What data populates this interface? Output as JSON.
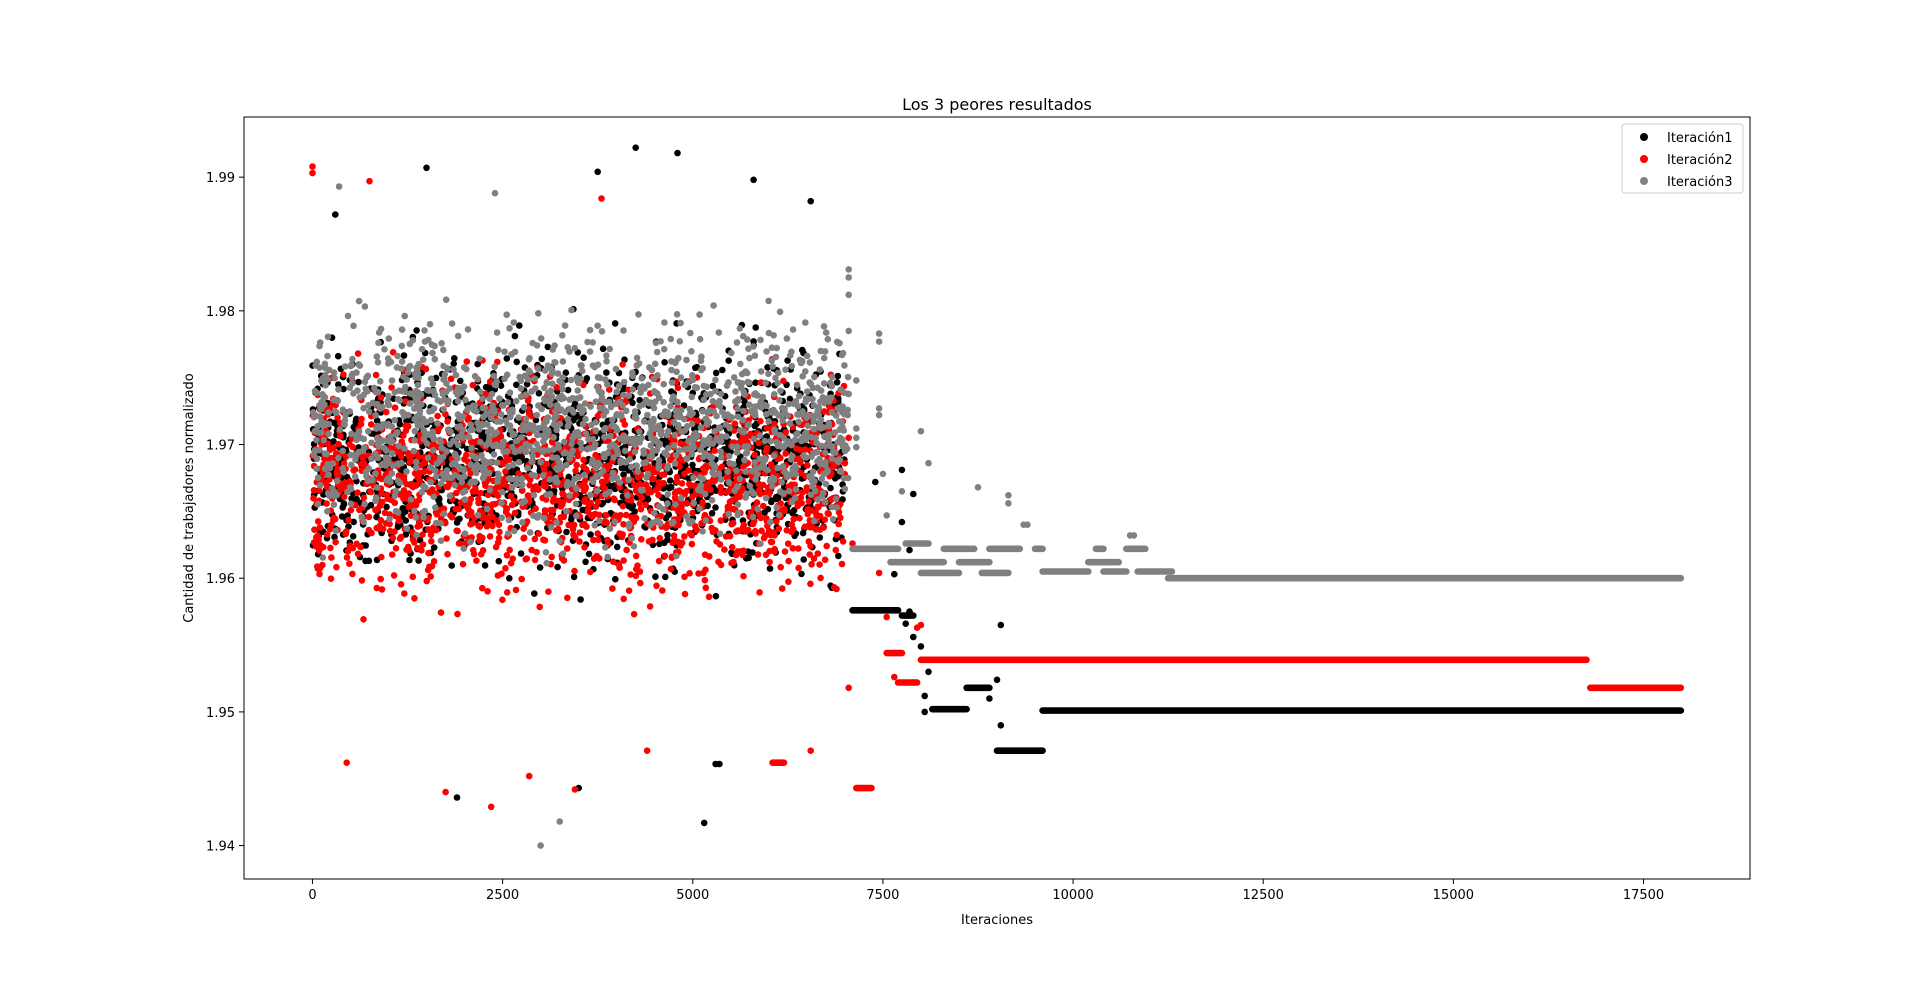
{
  "chart_data": {
    "type": "scatter",
    "title": "Los 3 peores resultados",
    "xlabel": "Iteraciones",
    "ylabel": "Cantidad de trabajadores normalizado",
    "xlim": [
      -900,
      18900
    ],
    "ylim": [
      1.9375,
      1.9945
    ],
    "xticks": [
      0,
      2500,
      5000,
      7500,
      10000,
      12500,
      15000,
      17500
    ],
    "xtick_labels": [
      "0",
      "2500",
      "5000",
      "7500",
      "10000",
      "12500",
      "15000",
      "17500"
    ],
    "yticks": [
      1.94,
      1.95,
      1.96,
      1.97,
      1.98,
      1.99
    ],
    "ytick_labels": [
      "1.94",
      "1.95",
      "1.96",
      "1.97",
      "1.98",
      "1.99"
    ],
    "grid": false,
    "legend": {
      "position": "top-right"
    },
    "series": [
      {
        "name": "Iteración1",
        "color": "#000000",
        "noisy_cloud": {
          "x_range": [
            0,
            7000
          ],
          "y_center": 1.969,
          "y_spread_range": [
            1.9415,
            1.9922
          ]
        },
        "points": [
          {
            "x": 4250,
            "y": 1.9922
          },
          {
            "x": 4800,
            "y": 1.9918
          },
          {
            "x": 1500,
            "y": 1.9907
          },
          {
            "x": 3750,
            "y": 1.9904
          },
          {
            "x": 5800,
            "y": 1.9898
          },
          {
            "x": 6550,
            "y": 1.9882
          },
          {
            "x": 300,
            "y": 1.9872
          },
          {
            "x": 5150,
            "y": 1.9417
          },
          {
            "x": 5300,
            "y": 1.9461
          },
          {
            "x": 5350,
            "y": 1.9461
          },
          {
            "x": 3500,
            "y": 1.9443
          },
          {
            "x": 1900,
            "y": 1.9436
          },
          {
            "x": 8050,
            "y": 1.95
          },
          {
            "x": 8050,
            "y": 1.9512
          },
          {
            "x": 8100,
            "y": 1.953
          },
          {
            "x": 8000,
            "y": 1.9549
          },
          {
            "x": 7850,
            "y": 1.9575
          },
          {
            "x": 7650,
            "y": 1.9603
          },
          {
            "x": 7850,
            "y": 1.9621
          },
          {
            "x": 7750,
            "y": 1.9642
          },
          {
            "x": 7900,
            "y": 1.9663
          },
          {
            "x": 7400,
            "y": 1.9672
          },
          {
            "x": 7750,
            "y": 1.9681
          },
          {
            "x": 8900,
            "y": 1.951
          },
          {
            "x": 9000,
            "y": 1.9524
          },
          {
            "x": 9050,
            "y": 1.949
          },
          {
            "x": 9050,
            "y": 1.9565
          },
          {
            "x": 7800,
            "y": 1.9566
          },
          {
            "x": 7900,
            "y": 1.9556
          }
        ],
        "segments": [
          {
            "x_start": 7100,
            "x_end": 7700,
            "y": 1.9576
          },
          {
            "x_start": 7750,
            "x_end": 7900,
            "y": 1.9572
          },
          {
            "x_start": 8150,
            "x_end": 8600,
            "y": 1.9502
          },
          {
            "x_start": 8600,
            "x_end": 8900,
            "y": 1.9518
          },
          {
            "x_start": 9000,
            "x_end": 9600,
            "y": 1.9471
          },
          {
            "x_start": 9600,
            "x_end": 17990,
            "y": 1.9501
          }
        ]
      },
      {
        "name": "Iteración2",
        "color": "#ff0000",
        "noisy_cloud": {
          "x_range": [
            0,
            7000
          ],
          "y_center": 1.967,
          "y_spread_range": [
            1.9428,
            1.9908
          ]
        },
        "points": [
          {
            "x": 0,
            "y": 1.9908
          },
          {
            "x": 0,
            "y": 1.9903
          },
          {
            "x": 750,
            "y": 1.9897
          },
          {
            "x": 3800,
            "y": 1.9884
          },
          {
            "x": 4400,
            "y": 1.9471
          },
          {
            "x": 6550,
            "y": 1.9471
          },
          {
            "x": 2350,
            "y": 1.9429
          },
          {
            "x": 1750,
            "y": 1.944
          },
          {
            "x": 3450,
            "y": 1.9442
          },
          {
            "x": 450,
            "y": 1.9462
          },
          {
            "x": 2850,
            "y": 1.9452
          },
          {
            "x": 7050,
            "y": 1.9518
          },
          {
            "x": 7100,
            "y": 1.9626
          },
          {
            "x": 7450,
            "y": 1.9604
          },
          {
            "x": 7550,
            "y": 1.9571
          },
          {
            "x": 7650,
            "y": 1.9526
          },
          {
            "x": 7900,
            "y": 1.9522
          },
          {
            "x": 7950,
            "y": 1.9563
          },
          {
            "x": 8000,
            "y": 1.9565
          },
          {
            "x": 7050,
            "y": 1.9705
          },
          {
            "x": 7000,
            "y": 1.9686
          }
        ],
        "segments": [
          {
            "x_start": 6050,
            "x_end": 6200,
            "y": 1.9462
          },
          {
            "x_start": 7150,
            "x_end": 7350,
            "y": 1.9443
          },
          {
            "x_start": 7550,
            "x_end": 7750,
            "y": 1.9544
          },
          {
            "x_start": 7700,
            "x_end": 7950,
            "y": 1.9522
          },
          {
            "x_start": 8000,
            "x_end": 16750,
            "y": 1.9539
          },
          {
            "x_start": 16800,
            "x_end": 17990,
            "y": 1.9518
          }
        ]
      },
      {
        "name": "Iteración3",
        "color": "#808080",
        "noisy_cloud": {
          "x_range": [
            0,
            7050
          ],
          "y_center": 1.9715,
          "y_spread_range": [
            1.94,
            1.9893
          ]
        },
        "points": [
          {
            "x": 3000,
            "y": 1.94
          },
          {
            "x": 3250,
            "y": 1.9418
          },
          {
            "x": 350,
            "y": 1.9893
          },
          {
            "x": 2400,
            "y": 1.9888
          },
          {
            "x": 7050,
            "y": 1.9831
          },
          {
            "x": 7050,
            "y": 1.9825
          },
          {
            "x": 7050,
            "y": 1.9812
          },
          {
            "x": 7050,
            "y": 1.9785
          },
          {
            "x": 7450,
            "y": 1.9783
          },
          {
            "x": 7450,
            "y": 1.9777
          },
          {
            "x": 7450,
            "y": 1.9727
          },
          {
            "x": 7450,
            "y": 1.9722
          },
          {
            "x": 7150,
            "y": 1.9748
          },
          {
            "x": 7150,
            "y": 1.9712
          },
          {
            "x": 7150,
            "y": 1.9705
          },
          {
            "x": 7150,
            "y": 1.9698
          },
          {
            "x": 7500,
            "y": 1.9678
          },
          {
            "x": 7750,
            "y": 1.9665
          },
          {
            "x": 7550,
            "y": 1.9647
          },
          {
            "x": 8000,
            "y": 1.971
          },
          {
            "x": 8100,
            "y": 1.9686
          },
          {
            "x": 8750,
            "y": 1.9668
          },
          {
            "x": 9150,
            "y": 1.9662
          },
          {
            "x": 9150,
            "y": 1.9656
          },
          {
            "x": 9350,
            "y": 1.964
          },
          {
            "x": 9400,
            "y": 1.964
          },
          {
            "x": 10750,
            "y": 1.9632
          },
          {
            "x": 10800,
            "y": 1.9632
          }
        ],
        "segments": [
          {
            "x_start": 7100,
            "x_end": 7700,
            "y": 1.9622
          },
          {
            "x_start": 7600,
            "x_end": 8300,
            "y": 1.9612
          },
          {
            "x_start": 7800,
            "x_end": 8100,
            "y": 1.9626
          },
          {
            "x_start": 8300,
            "x_end": 8700,
            "y": 1.9622
          },
          {
            "x_start": 8000,
            "x_end": 8500,
            "y": 1.9604
          },
          {
            "x_start": 8500,
            "x_end": 8900,
            "y": 1.9612
          },
          {
            "x_start": 8800,
            "x_end": 9150,
            "y": 1.9604
          },
          {
            "x_start": 8900,
            "x_end": 9300,
            "y": 1.9622
          },
          {
            "x_start": 9500,
            "x_end": 9600,
            "y": 1.9622
          },
          {
            "x_start": 9600,
            "x_end": 10200,
            "y": 1.9605
          },
          {
            "x_start": 10200,
            "x_end": 10600,
            "y": 1.9612
          },
          {
            "x_start": 10300,
            "x_end": 10400,
            "y": 1.9622
          },
          {
            "x_start": 10400,
            "x_end": 10700,
            "y": 1.9605
          },
          {
            "x_start": 10700,
            "x_end": 10950,
            "y": 1.9622
          },
          {
            "x_start": 10850,
            "x_end": 11300,
            "y": 1.9605
          },
          {
            "x_start": 11250,
            "x_end": 17990,
            "y": 1.96
          }
        ]
      }
    ]
  }
}
